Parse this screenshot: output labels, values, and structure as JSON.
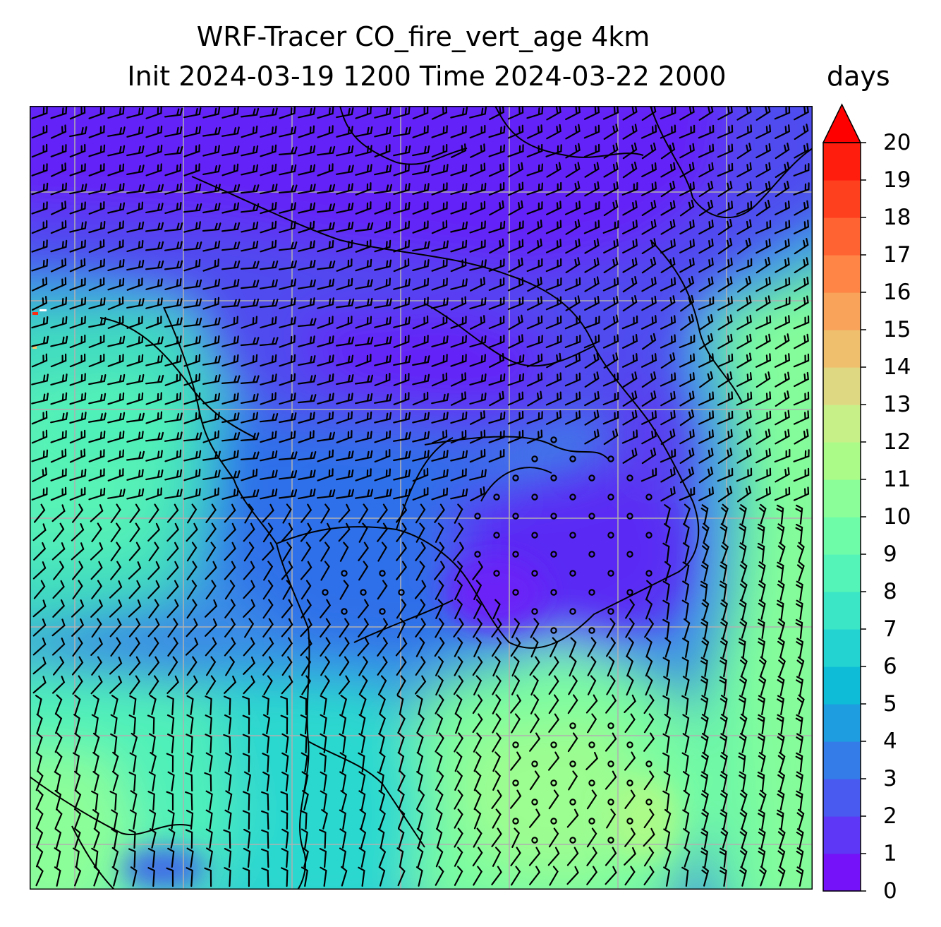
{
  "title": {
    "line1": "WRF-Tracer CO_fire_vert_age 4km",
    "line2": "Init 2024-03-19 1200 Time 2024-03-22 2000"
  },
  "colorbar": {
    "units": "days",
    "ticks": [
      "0",
      "1",
      "2",
      "3",
      "4",
      "5",
      "6",
      "7",
      "8",
      "9",
      "10",
      "11",
      "12",
      "13",
      "14",
      "15",
      "16",
      "17",
      "18",
      "19",
      "20"
    ],
    "extend": "max",
    "colors": [
      "#7512f9",
      "#5e36f5",
      "#485af0",
      "#347ce8",
      "#1e9de0",
      "#0ebcd7",
      "#22d3d2",
      "#3ae6c6",
      "#54f4b9",
      "#6ffca9",
      "#8cfe99",
      "#aafb88",
      "#c7f088",
      "#dfd882",
      "#f0bf6e",
      "#f9a25a",
      "#fe8546",
      "#ff6332",
      "#ff401f",
      "#ff1d0d"
    ],
    "overflow_color": "#ff0000"
  },
  "map": {
    "type": "filled contour with wind barbs",
    "field_range": [
      0,
      20
    ],
    "gridlines": true,
    "gridline_color": "#b0b0b0",
    "coastline_color": "#000000"
  }
}
